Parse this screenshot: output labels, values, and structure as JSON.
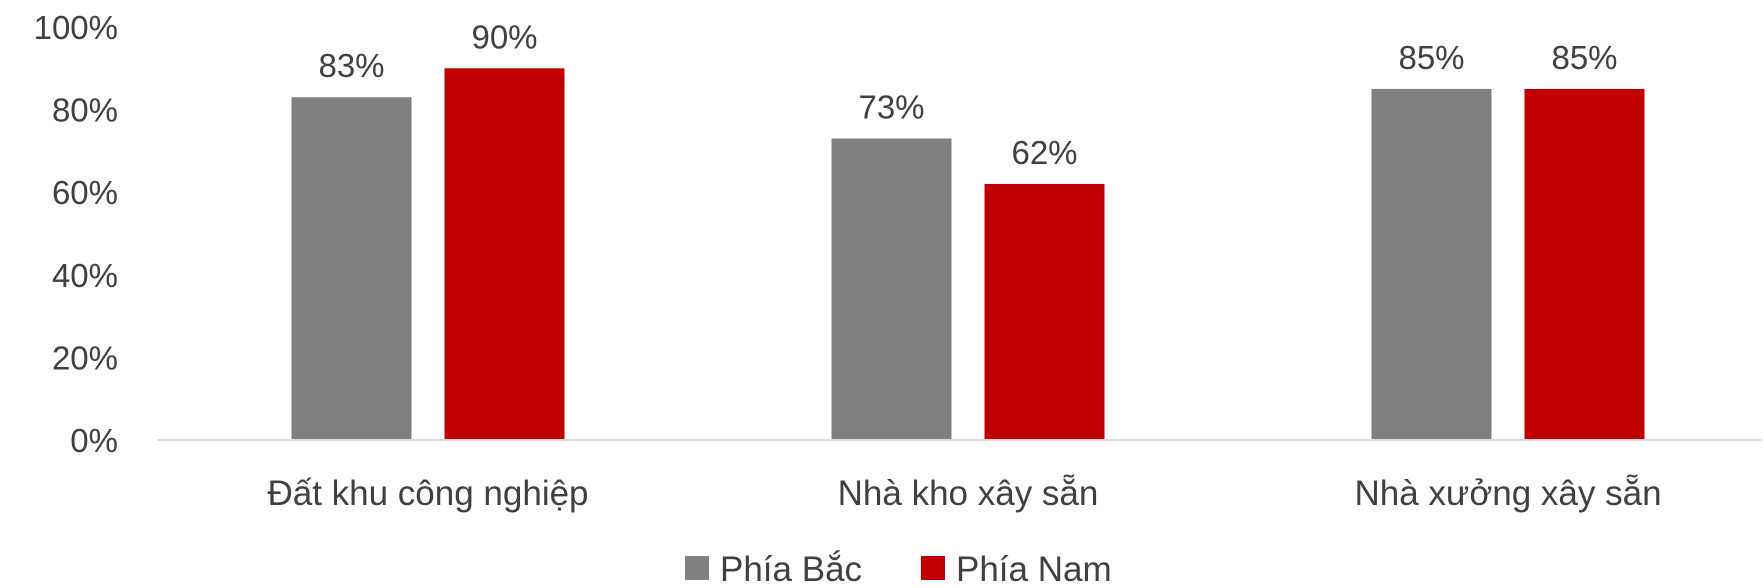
{
  "chart_data": {
    "type": "bar",
    "categories": [
      "Đất khu công nghiệp",
      "Nhà kho xây sẵn",
      "Nhà xưởng xây sẵn"
    ],
    "series": [
      {
        "name": "Phía Bắc",
        "values": [
          83,
          73,
          85
        ],
        "color": "#808080"
      },
      {
        "name": "Phía Nam",
        "values": [
          90,
          62,
          85
        ],
        "color": "#C00000"
      }
    ],
    "value_suffix": "%",
    "ylim": [
      0,
      100
    ],
    "yticks": [
      0,
      20,
      40,
      60,
      80,
      100
    ],
    "grid": false,
    "legend_position": "bottom",
    "axis_color": "#D9D9D9"
  }
}
